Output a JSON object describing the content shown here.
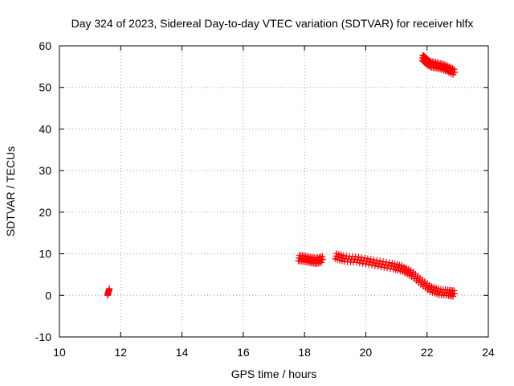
{
  "chart_data": {
    "type": "scatter",
    "title": "Day 324 of 2023, Sidereal Day-to-day VTEC variation (SDTVAR) for receiver hlfx",
    "xlabel": "GPS time / hours",
    "ylabel": "SDTVAR / TECUs",
    "xlim": [
      10,
      24
    ],
    "ylim": [
      -10,
      60
    ],
    "xticks": [
      10,
      12,
      14,
      16,
      18,
      20,
      22,
      24
    ],
    "yticks": [
      -10,
      0,
      10,
      20,
      30,
      40,
      50,
      60
    ],
    "grid": true,
    "legend": "none",
    "marker": "plus",
    "series": [
      {
        "name": "SDTVAR",
        "color": "#ff0000",
        "segments": [
          {
            "x": [
              11.57,
              11.6,
              11.63
            ],
            "y": [
              0.0,
              0.8,
              1.6
            ]
          },
          {
            "x": [
              17.8,
              18.0,
              18.2,
              18.4,
              18.6
            ],
            "y": [
              9.0,
              8.8,
              8.5,
              8.3,
              8.7
            ]
          },
          {
            "x": [
              19.0,
              19.3,
              19.7,
              20.1,
              20.5,
              20.9,
              21.2,
              21.5,
              21.8,
              22.1,
              22.4,
              22.7,
              22.9
            ],
            "y": [
              9.5,
              8.8,
              8.6,
              8.1,
              7.5,
              7.0,
              6.4,
              5.2,
              3.3,
              1.6,
              0.8,
              0.6,
              0.4
            ]
          },
          {
            "x": [
              21.85,
              21.95,
              22.1,
              22.3,
              22.5,
              22.7,
              22.9
            ],
            "y": [
              57.2,
              56.5,
              55.6,
              55.3,
              55.0,
              54.4,
              53.6
            ]
          }
        ]
      }
    ]
  }
}
